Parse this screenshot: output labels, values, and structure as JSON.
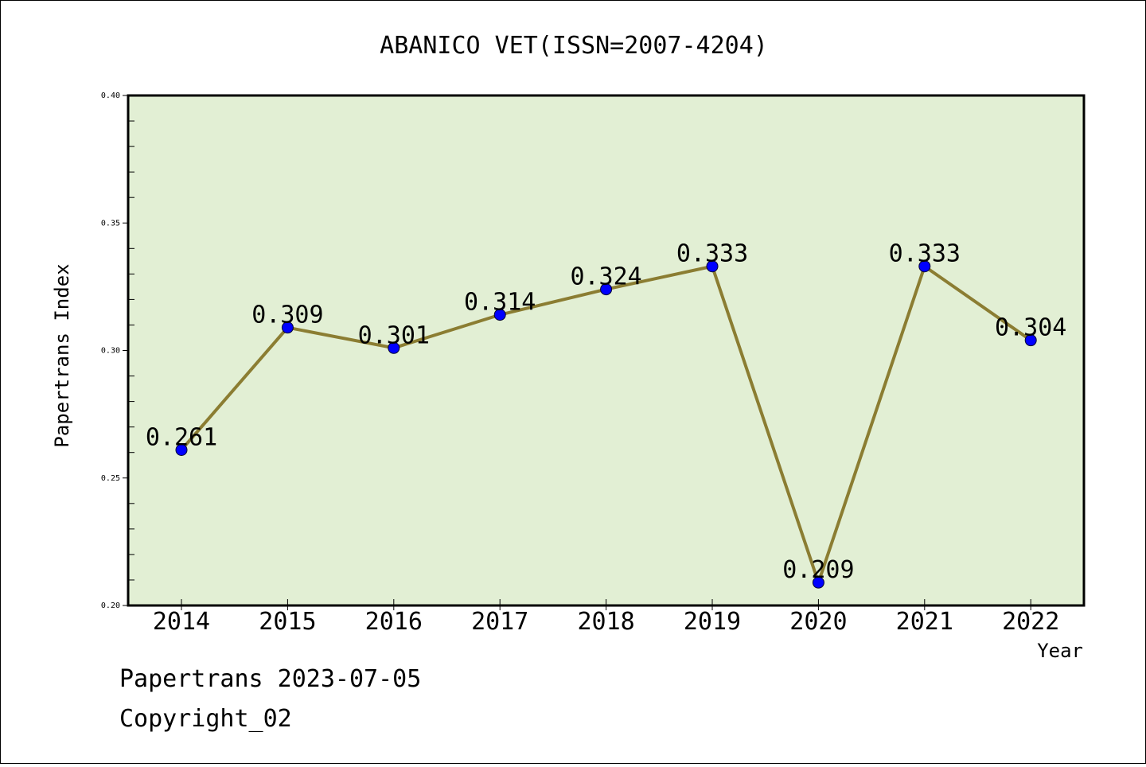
{
  "chart_data": {
    "type": "line",
    "title": "ABANICO VET(ISSN=2007-4204)",
    "xlabel": "Year",
    "ylabel": "Papertrans Index",
    "categories": [
      "2014",
      "2015",
      "2016",
      "2017",
      "2018",
      "2019",
      "2020",
      "2021",
      "2022"
    ],
    "series": [
      {
        "values": [
          0.261,
          0.309,
          0.301,
          0.314,
          0.324,
          0.333,
          0.209,
          0.333,
          0.304
        ],
        "labels": [
          "0.261",
          "0.309",
          "0.301",
          "0.314",
          "0.324",
          "0.333",
          "0.209",
          "0.333",
          "0.304"
        ]
      }
    ],
    "ylim": [
      0.2,
      0.4
    ],
    "yticks": [
      "0.20",
      "0.25",
      "0.30",
      "0.35",
      "0.40"
    ],
    "grid": false,
    "plot_background": "#e2efd4",
    "line_color": "#8b7d32",
    "marker_color": "#0000ff"
  },
  "footer": {
    "source": "Papertrans 2023-07-05",
    "copyright": "Copyright_02"
  }
}
